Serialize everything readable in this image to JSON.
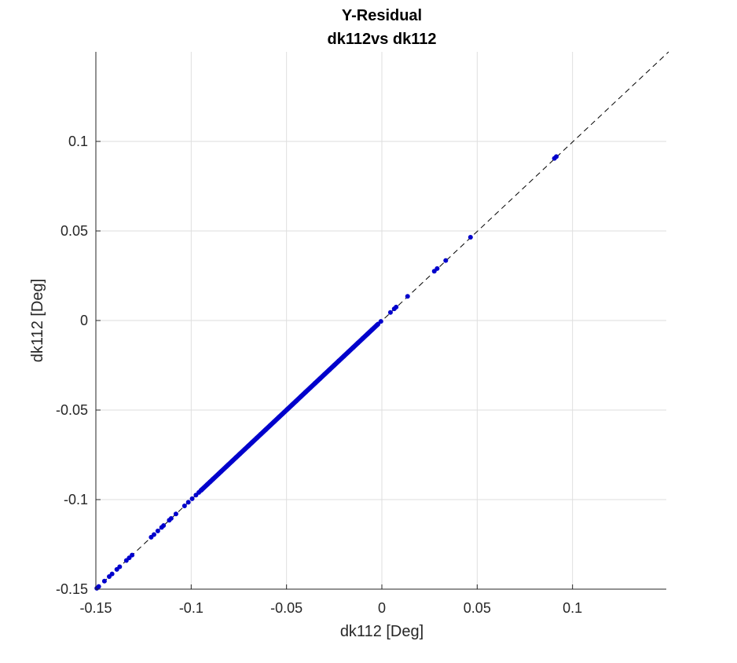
{
  "chart_data": {
    "type": "scatter",
    "title": "Y-Residual",
    "subtitle": "dk112vs dk112",
    "xlabel": "dk112 [Deg]",
    "ylabel": "dk112 [Deg]",
    "xlim": [
      -0.15,
      0.15
    ],
    "ylim": [
      -0.15,
      0.15
    ],
    "xticks": [
      -0.15,
      -0.1,
      -0.05,
      0,
      0.05,
      0.1
    ],
    "yticks": [
      -0.15,
      -0.1,
      -0.05,
      0,
      0.05,
      0.1
    ],
    "xtick_labels": [
      "-0.15",
      "-0.1",
      "-0.05",
      "0",
      "0.05",
      "0.1"
    ],
    "ytick_labels": [
      "-0.15",
      "-0.1",
      "-0.05",
      "0",
      "0.05",
      "0.1"
    ],
    "grid": true,
    "reference_line": {
      "style": "dashed",
      "from": [
        -0.15,
        -0.15
      ],
      "to": [
        0.15,
        0.15
      ]
    },
    "dense_segments": [
      {
        "from": -0.095,
        "to": -0.002,
        "color": "#0000cc"
      }
    ],
    "points": [
      [
        -0.1495,
        -0.1495
      ],
      [
        -0.1485,
        -0.1485
      ],
      [
        -0.1455,
        -0.1455
      ],
      [
        -0.143,
        -0.143
      ],
      [
        -0.1415,
        -0.1415
      ],
      [
        -0.139,
        -0.139
      ],
      [
        -0.1375,
        -0.1375
      ],
      [
        -0.134,
        -0.134
      ],
      [
        -0.1325,
        -0.1325
      ],
      [
        -0.131,
        -0.131
      ],
      [
        -0.121,
        -0.121
      ],
      [
        -0.1195,
        -0.1195
      ],
      [
        -0.1175,
        -0.1175
      ],
      [
        -0.1155,
        -0.1155
      ],
      [
        -0.1145,
        -0.1145
      ],
      [
        -0.1115,
        -0.1115
      ],
      [
        -0.1105,
        -0.1105
      ],
      [
        -0.108,
        -0.108
      ],
      [
        -0.1035,
        -0.1035
      ],
      [
        -0.1015,
        -0.1015
      ],
      [
        -0.0995,
        -0.0995
      ],
      [
        -0.0975,
        -0.0975
      ],
      [
        -0.096,
        -0.096
      ],
      [
        -0.0945,
        -0.0945
      ],
      [
        -0.0915,
        -0.0915
      ],
      [
        -0.09,
        -0.09
      ],
      [
        -0.0885,
        -0.0885
      ],
      [
        -0.0855,
        -0.0855
      ],
      [
        -0.0845,
        -0.0845
      ],
      [
        -0.0815,
        -0.0815
      ],
      [
        -0.0805,
        -0.0805
      ],
      [
        -0.0785,
        -0.0785
      ],
      [
        -0.0765,
        -0.0765
      ],
      [
        -0.0745,
        -0.0745
      ],
      [
        -0.072,
        -0.072
      ],
      [
        -0.07,
        -0.07
      ],
      [
        -0.068,
        -0.068
      ],
      [
        -0.0655,
        -0.0655
      ],
      [
        -0.0635,
        -0.0635
      ],
      [
        -0.061,
        -0.061
      ],
      [
        -0.0585,
        -0.0585
      ],
      [
        -0.0565,
        -0.0565
      ],
      [
        -0.054,
        -0.054
      ],
      [
        -0.052,
        -0.052
      ],
      [
        -0.0495,
        -0.0495
      ],
      [
        -0.047,
        -0.047
      ],
      [
        -0.045,
        -0.045
      ],
      [
        -0.0425,
        -0.0425
      ],
      [
        -0.04,
        -0.04
      ],
      [
        -0.0375,
        -0.0375
      ],
      [
        -0.035,
        -0.035
      ],
      [
        -0.0325,
        -0.0325
      ],
      [
        -0.03,
        -0.03
      ],
      [
        -0.0275,
        -0.0275
      ],
      [
        -0.025,
        -0.025
      ],
      [
        -0.0225,
        -0.0225
      ],
      [
        -0.02,
        -0.02
      ],
      [
        -0.0175,
        -0.0175
      ],
      [
        -0.015,
        -0.015
      ],
      [
        -0.0125,
        -0.0125
      ],
      [
        -0.01,
        -0.01
      ],
      [
        -0.0075,
        -0.0075
      ],
      [
        -0.005,
        -0.005
      ],
      [
        -0.0025,
        -0.0025
      ],
      [
        -0.0005,
        -0.0005
      ],
      [
        0.0045,
        0.0045
      ],
      [
        0.0065,
        0.0065
      ],
      [
        0.0075,
        0.0075
      ],
      [
        0.0135,
        0.0135
      ],
      [
        0.0275,
        0.0275
      ],
      [
        0.029,
        0.029
      ],
      [
        0.0335,
        0.0335
      ],
      [
        0.0465,
        0.0465
      ],
      [
        0.0905,
        0.0905
      ],
      [
        0.0915,
        0.0915
      ]
    ],
    "point_color": "#0000cc"
  }
}
